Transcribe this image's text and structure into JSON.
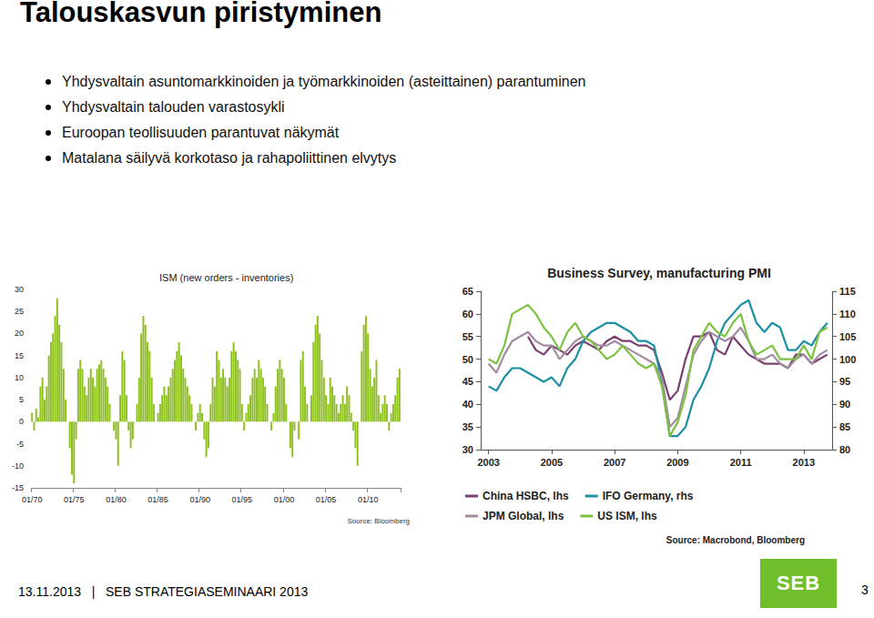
{
  "slide": {
    "title": "Talouskasvun piristyminen",
    "bullets": [
      "Yhdysvaltain asuntomarkkinoiden ja työmarkkinoiden (asteittainen) parantuminen",
      "Yhdysvaltain talouden varastosykli",
      "Euroopan teollisuuden parantuvat näkymät",
      "Matalana säilyvä korkotaso ja rahapoliittinen elvytys"
    ],
    "footer": "13.11.2013   |   SEB STRATEGIASEMINAARI 2013",
    "page": "3",
    "logo": "SEB"
  },
  "chart_data": [
    {
      "type": "bar",
      "title": "ISM (new orders - inventories)",
      "source": "Source: Bloomberg",
      "color": "#8dbf1e",
      "grid": false,
      "ylim": [
        -15,
        30
      ],
      "yticks": [
        -15,
        -10,
        -5,
        0,
        5,
        10,
        15,
        20,
        25,
        30
      ],
      "categories": [
        "01/70",
        null,
        null,
        null,
        null,
        null,
        null,
        null,
        null,
        null,
        null,
        null,
        null,
        null,
        null,
        null,
        null,
        null,
        null,
        null,
        "01/75",
        null,
        null,
        null,
        null,
        null,
        null,
        null,
        null,
        null,
        null,
        null,
        null,
        null,
        null,
        null,
        null,
        null,
        null,
        null,
        "01/80",
        null,
        null,
        null,
        null,
        null,
        null,
        null,
        null,
        null,
        null,
        null,
        null,
        null,
        null,
        null,
        null,
        null,
        null,
        null,
        "01/85",
        null,
        null,
        null,
        null,
        null,
        null,
        null,
        null,
        null,
        null,
        null,
        null,
        null,
        null,
        null,
        null,
        null,
        null,
        null,
        "01/90",
        null,
        null,
        null,
        null,
        null,
        null,
        null,
        null,
        null,
        null,
        null,
        null,
        null,
        null,
        null,
        null,
        null,
        null,
        null,
        "01/95",
        null,
        null,
        null,
        null,
        null,
        null,
        null,
        null,
        null,
        null,
        null,
        null,
        null,
        null,
        null,
        null,
        null,
        null,
        null,
        "01/00",
        null,
        null,
        null,
        null,
        null,
        null,
        null,
        null,
        null,
        null,
        null,
        null,
        null,
        null,
        null,
        null,
        null,
        null,
        null,
        "01/05",
        null,
        null,
        null,
        null,
        null,
        null,
        null,
        null,
        null,
        null,
        null,
        null,
        null,
        null,
        null,
        null,
        null,
        null,
        null,
        "01/10",
        null,
        null,
        null,
        null,
        null,
        null,
        null,
        null,
        null,
        null,
        null,
        null,
        null,
        null,
        null
      ],
      "values": [
        2,
        -2,
        3,
        1,
        8,
        10,
        5,
        8,
        15,
        18,
        20,
        24,
        28,
        22,
        18,
        12,
        5,
        0,
        -6,
        -12,
        -14,
        -4,
        12,
        14,
        12,
        8,
        6,
        10,
        12,
        10,
        8,
        12,
        13,
        14,
        12,
        10,
        8,
        4,
        0,
        -2,
        -4,
        -10,
        6,
        16,
        14,
        6,
        -2,
        -6,
        -4,
        0,
        4,
        10,
        20,
        24,
        22,
        18,
        16,
        10,
        4,
        0,
        2,
        4,
        6,
        8,
        6,
        8,
        10,
        12,
        14,
        16,
        18,
        15,
        12,
        10,
        8,
        6,
        4,
        0,
        -2,
        2,
        4,
        2,
        -4,
        -8,
        -6,
        4,
        10,
        8,
        16,
        14,
        10,
        12,
        10,
        8,
        10,
        16,
        18,
        16,
        14,
        12,
        4,
        -2,
        2,
        4,
        6,
        10,
        12,
        10,
        14,
        12,
        10,
        8,
        4,
        0,
        -2,
        2,
        8,
        12,
        14,
        12,
        10,
        4,
        0,
        -6,
        -8,
        -2,
        0,
        -4,
        14,
        16,
        8,
        4,
        0,
        6,
        18,
        22,
        24,
        20,
        14,
        10,
        6,
        4,
        10,
        8,
        6,
        4,
        2,
        4,
        6,
        4,
        8,
        6,
        2,
        -2,
        -6,
        -10,
        0,
        16,
        22,
        24,
        20,
        12,
        8,
        10,
        14,
        6,
        2,
        4,
        6,
        4,
        -2,
        2,
        4,
        6,
        10,
        12
      ]
    },
    {
      "type": "line",
      "title": "Business Survey, manufacturing PMI",
      "source": "Source: Macrobond, Bloomberg",
      "grid": false,
      "legend": "bottom",
      "x": [
        2003,
        2003.25,
        2003.5,
        2003.75,
        2004,
        2004.25,
        2004.5,
        2004.75,
        2005,
        2005.25,
        2005.5,
        2005.75,
        2006,
        2006.25,
        2006.5,
        2006.75,
        2007,
        2007.25,
        2007.5,
        2007.75,
        2008,
        2008.25,
        2008.5,
        2008.75,
        2009,
        2009.25,
        2009.5,
        2009.75,
        2010,
        2010.25,
        2010.5,
        2010.75,
        2011,
        2011.25,
        2011.5,
        2011.75,
        2012,
        2012.25,
        2012.5,
        2012.75,
        2013,
        2013.25,
        2013.5,
        2013.75
      ],
      "xlim": [
        2002.75,
        2013.9
      ],
      "xticks": [
        2003,
        2005,
        2007,
        2009,
        2011,
        2013
      ],
      "ylim": [
        30,
        65
      ],
      "yticks": [
        30,
        35,
        40,
        45,
        50,
        55,
        60,
        65
      ],
      "y2lim": [
        80,
        115
      ],
      "y2ticks": [
        80,
        85,
        90,
        95,
        100,
        105,
        110,
        115
      ],
      "series": [
        {
          "name": "China HSBC, lhs",
          "color": "#7a3f6e",
          "values": [
            null,
            null,
            null,
            null,
            null,
            55,
            52,
            51,
            53,
            52,
            51,
            53,
            54,
            53,
            52,
            54,
            55,
            54,
            54,
            53,
            53,
            52,
            47,
            41,
            43,
            50,
            55,
            55,
            56,
            52,
            51,
            55,
            53,
            51,
            50,
            49,
            49,
            49,
            48,
            51,
            51,
            49,
            50,
            51
          ]
        },
        {
          "name": "IFO Germany, rhs",
          "color": "#1b8fa3",
          "axis": "y2",
          "values": [
            94,
            93,
            96,
            98,
            98,
            97,
            96,
            95,
            96,
            94,
            98,
            100,
            104,
            106,
            107,
            108,
            108,
            107,
            106,
            104,
            104,
            103,
            95,
            83,
            83,
            85,
            91,
            94,
            98,
            104,
            108,
            110,
            112,
            113,
            108,
            106,
            108,
            107,
            102,
            102,
            104,
            103,
            106,
            108
          ]
        },
        {
          "name": "JPM Global, lhs",
          "color": "#a28ca0",
          "values": [
            49,
            47,
            51,
            54,
            55,
            56,
            54,
            53,
            53,
            50,
            52,
            54,
            55,
            54,
            53,
            53,
            54,
            53,
            52,
            51,
            50,
            49,
            46,
            35,
            37,
            44,
            51,
            54,
            56,
            55,
            54,
            55,
            57,
            54,
            50,
            50,
            51,
            49,
            48,
            50,
            51,
            49,
            51,
            52
          ]
        },
        {
          "name": "US ISM, lhs",
          "color": "#7cc242",
          "values": [
            50,
            49,
            53,
            60,
            61,
            62,
            60,
            57,
            55,
            52,
            56,
            58,
            55,
            54,
            52,
            50,
            51,
            53,
            51,
            49,
            48,
            49,
            44,
            33,
            36,
            42,
            52,
            55,
            58,
            56,
            55,
            58,
            60,
            54,
            51,
            52,
            53,
            50,
            50,
            50,
            53,
            50,
            56,
            57
          ]
        }
      ]
    }
  ]
}
